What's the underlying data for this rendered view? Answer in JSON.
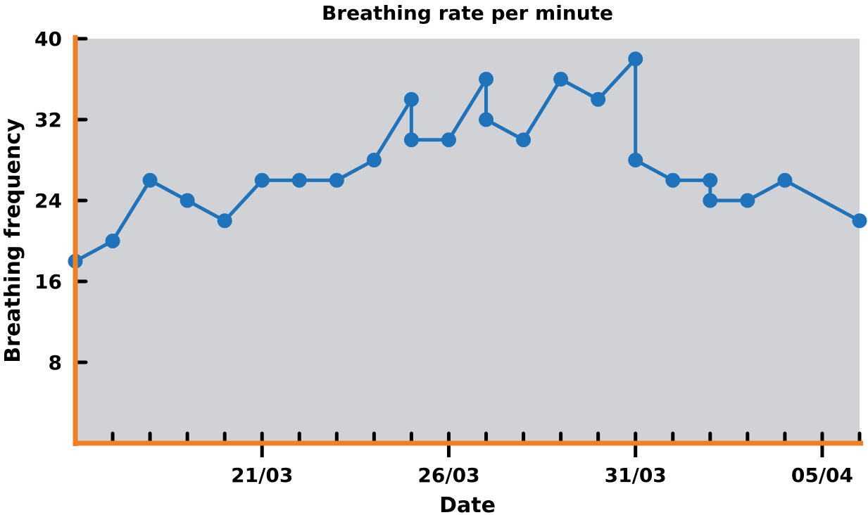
{
  "colors": {
    "plot_background": "#d1d2d6",
    "axis": "#f07f22",
    "series": "#1f73ba",
    "tick": "#000000"
  },
  "chart_data": {
    "type": "line",
    "title": "Breathing rate per minute",
    "xlabel": "Date",
    "ylabel": "Breathing frequency",
    "ylim": [
      0,
      40
    ],
    "yticks": [
      8,
      16,
      24,
      32,
      40
    ],
    "xlim": [
      "2024-03-16",
      "2024-04-06"
    ],
    "x_tick_labels": [
      {
        "date": "2024-03-21",
        "label": "21/03"
      },
      {
        "date": "2024-03-26",
        "label": "26/03"
      },
      {
        "date": "2024-03-31",
        "label": "31/03"
      },
      {
        "date": "2024-04-05",
        "label": "05/04"
      }
    ],
    "grid": false,
    "legend": "none",
    "series": [
      {
        "points": [
          {
            "x": "2024-03-16",
            "y": 18
          },
          {
            "x": "2024-03-17",
            "y": 20
          },
          {
            "x": "2024-03-18",
            "y": 26
          },
          {
            "x": "2024-03-19",
            "y": 24
          },
          {
            "x": "2024-03-20",
            "y": 22
          },
          {
            "x": "2024-03-21",
            "y": 26
          },
          {
            "x": "2024-03-22",
            "y": 26
          },
          {
            "x": "2024-03-23",
            "y": 26
          },
          {
            "x": "2024-03-24",
            "y": 28
          },
          {
            "x": "2024-03-25",
            "y": 34
          },
          {
            "x": "2024-03-25",
            "y": 30
          },
          {
            "x": "2024-03-26",
            "y": 30
          },
          {
            "x": "2024-03-27",
            "y": 36
          },
          {
            "x": "2024-03-27",
            "y": 32
          },
          {
            "x": "2024-03-28",
            "y": 30
          },
          {
            "x": "2024-03-29",
            "y": 36
          },
          {
            "x": "2024-03-30",
            "y": 34
          },
          {
            "x": "2024-03-31",
            "y": 38
          },
          {
            "x": "2024-03-31",
            "y": 28
          },
          {
            "x": "2024-04-01",
            "y": 26
          },
          {
            "x": "2024-04-02",
            "y": 26
          },
          {
            "x": "2024-04-02",
            "y": 24
          },
          {
            "x": "2024-04-03",
            "y": 24
          },
          {
            "x": "2024-04-04",
            "y": 26
          },
          {
            "x": "2024-04-06",
            "y": 22
          }
        ]
      }
    ]
  }
}
